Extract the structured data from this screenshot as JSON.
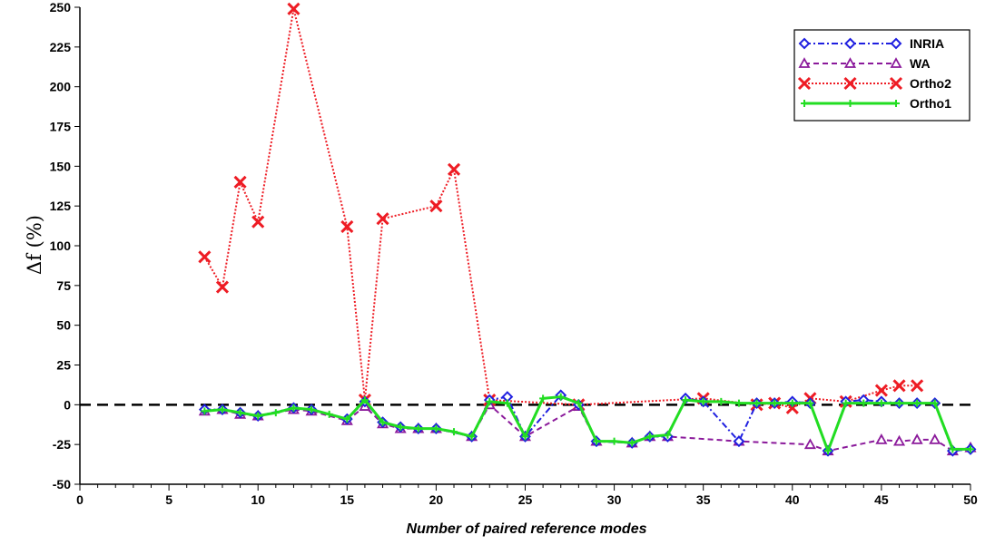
{
  "chart_data": {
    "type": "line",
    "xlabel": "Number of paired reference modes",
    "ylabel": "Δf (%)",
    "xlim": [
      0,
      50
    ],
    "ylim": [
      -50,
      250
    ],
    "xticks": [
      0,
      5,
      10,
      15,
      20,
      25,
      30,
      35,
      40,
      45,
      50
    ],
    "yticks": [
      -50,
      -25,
      0,
      25,
      50,
      75,
      100,
      125,
      150,
      175,
      200,
      225,
      250
    ],
    "reference_line": 0,
    "grid": false,
    "legend": "top-right",
    "series": [
      {
        "name": "INRIA",
        "color": "#1f1fe0",
        "marker": "diamond",
        "dash": "dash-dot",
        "x": [
          7,
          8,
          9,
          10,
          12,
          13,
          15,
          16,
          17,
          18,
          19,
          20,
          22,
          23,
          24,
          25,
          27,
          28,
          29,
          31,
          32,
          33,
          34,
          35,
          37,
          38,
          39,
          40,
          41,
          42,
          43,
          44,
          45,
          46,
          47,
          48,
          49,
          50
        ],
        "values": [
          -3,
          -3,
          -5,
          -7,
          -2,
          -3,
          -9,
          2,
          -11,
          -14,
          -15,
          -15,
          -20,
          3,
          5,
          -20,
          6,
          0,
          -23,
          -24,
          -20,
          -20,
          4,
          2,
          -23,
          1,
          1,
          2,
          1,
          -29,
          2,
          3,
          2,
          1,
          1,
          1,
          -29,
          -28
        ]
      },
      {
        "name": "WA",
        "color": "#8b1a9b",
        "marker": "triangle",
        "dash": "dashed",
        "x": [
          7,
          8,
          9,
          10,
          12,
          13,
          15,
          16,
          17,
          18,
          19,
          20,
          22,
          23,
          25,
          28,
          29,
          31,
          32,
          33,
          37,
          41,
          42,
          45,
          46,
          47,
          48,
          49,
          50
        ],
        "values": [
          -4,
          -3,
          -6,
          -7,
          -3,
          -4,
          -10,
          -1,
          -12,
          -15,
          -15,
          -15,
          -20,
          0,
          -20,
          -1,
          -23,
          -24,
          -20,
          -20,
          -23,
          -25,
          -29,
          -22,
          -23,
          -22,
          -22,
          -29,
          -27
        ]
      },
      {
        "name": "Ortho2",
        "color": "#ee1c24",
        "marker": "x",
        "dash": "dotted",
        "x": [
          7,
          8,
          9,
          10,
          12,
          15,
          16,
          17,
          20,
          21,
          23,
          28,
          35,
          38,
          39,
          40,
          41,
          43,
          45,
          46,
          47
        ],
        "values": [
          93,
          74,
          140,
          115,
          249,
          112,
          3,
          117,
          125,
          148,
          3,
          0,
          4,
          0,
          1,
          -2,
          4,
          2,
          9,
          12,
          12
        ]
      },
      {
        "name": "Ortho1",
        "color": "#22dd22",
        "marker": "plus",
        "dash": "solid",
        "x": [
          7,
          8,
          9,
          10,
          11,
          12,
          13,
          14,
          15,
          16,
          17,
          18,
          19,
          20,
          21,
          22,
          23,
          24,
          25,
          26,
          27,
          28,
          29,
          30,
          31,
          32,
          33,
          34,
          35,
          36,
          37,
          38,
          39,
          40,
          41,
          42,
          43,
          44,
          45,
          46,
          47,
          48,
          49,
          50
        ],
        "values": [
          -4,
          -3,
          -5,
          -7,
          -5,
          -2,
          -3,
          -6,
          -9,
          3,
          -11,
          -14,
          -15,
          -15,
          -17,
          -20,
          2,
          1,
          -20,
          4,
          5,
          1,
          -23,
          -23,
          -24,
          -20,
          -19,
          3,
          2,
          2,
          1,
          1,
          1,
          1,
          1,
          -29,
          1,
          1,
          1,
          1,
          1,
          1,
          -28,
          -28
        ]
      }
    ]
  }
}
